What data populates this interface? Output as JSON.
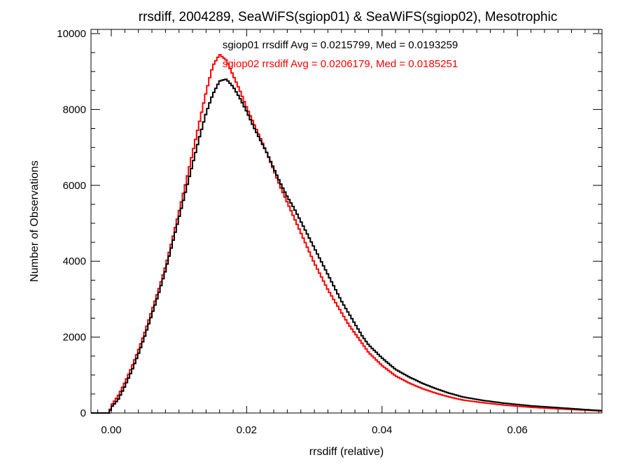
{
  "chart_data": {
    "type": "line",
    "title": "rrsdiff, 2004289, SeaWiFS(sgiop01) & SeaWiFS(sgiop02), Mesotrophic",
    "xlabel": "rrsdiff (relative)",
    "ylabel": "Number of Observations",
    "xlim": [
      -0.003,
      0.0725
    ],
    "ylim": [
      0,
      10000
    ],
    "x_ticks": [
      "0.00",
      "0.02",
      "0.04",
      "0.06"
    ],
    "x_tick_values": [
      0,
      0.02,
      0.04,
      0.06
    ],
    "y_ticks": [
      "0",
      "2000",
      "4000",
      "6000",
      "8000",
      "10000"
    ],
    "y_tick_values": [
      0,
      2000,
      4000,
      6000,
      8000,
      10000
    ],
    "grid": false,
    "series": [
      {
        "name": "sgiop01",
        "color": "#000000",
        "annotation": "sgiop01 rrsdiff Avg = 0.0215799, Med = 0.0193259",
        "points": [
          [
            -0.003,
            0
          ],
          [
            -0.0003,
            0
          ],
          [
            0.0,
            150
          ],
          [
            0.001,
            350
          ],
          [
            0.002,
            700
          ],
          [
            0.003,
            1100
          ],
          [
            0.004,
            1550
          ],
          [
            0.005,
            2050
          ],
          [
            0.006,
            2600
          ],
          [
            0.007,
            3150
          ],
          [
            0.008,
            3750
          ],
          [
            0.009,
            4450
          ],
          [
            0.01,
            5150
          ],
          [
            0.011,
            5850
          ],
          [
            0.012,
            6550
          ],
          [
            0.013,
            7250
          ],
          [
            0.014,
            7900
          ],
          [
            0.015,
            8400
          ],
          [
            0.016,
            8750
          ],
          [
            0.017,
            8800
          ],
          [
            0.018,
            8600
          ],
          [
            0.019,
            8300
          ],
          [
            0.02,
            7950
          ],
          [
            0.021,
            7550
          ],
          [
            0.022,
            7200
          ],
          [
            0.023,
            6850
          ],
          [
            0.024,
            6450
          ],
          [
            0.025,
            6050
          ],
          [
            0.026,
            5700
          ],
          [
            0.027,
            5400
          ],
          [
            0.028,
            5050
          ],
          [
            0.029,
            4700
          ],
          [
            0.03,
            4350
          ],
          [
            0.031,
            4000
          ],
          [
            0.032,
            3650
          ],
          [
            0.033,
            3300
          ],
          [
            0.034,
            2950
          ],
          [
            0.035,
            2650
          ],
          [
            0.036,
            2350
          ],
          [
            0.037,
            2050
          ],
          [
            0.038,
            1800
          ],
          [
            0.04,
            1450
          ],
          [
            0.042,
            1150
          ],
          [
            0.044,
            950
          ],
          [
            0.046,
            780
          ],
          [
            0.048,
            640
          ],
          [
            0.05,
            520
          ],
          [
            0.052,
            420
          ],
          [
            0.055,
            330
          ],
          [
            0.058,
            260
          ],
          [
            0.062,
            190
          ],
          [
            0.066,
            140
          ],
          [
            0.07,
            90
          ],
          [
            0.0725,
            60
          ]
        ]
      },
      {
        "name": "sgiop02",
        "color": "#ff0000",
        "annotation": "sgiop02 rrsdiff Avg = 0.0206179, Med = 0.0185251",
        "points": [
          [
            -0.003,
            0
          ],
          [
            -0.0003,
            0
          ],
          [
            0.0,
            200
          ],
          [
            0.001,
            450
          ],
          [
            0.002,
            800
          ],
          [
            0.003,
            1200
          ],
          [
            0.004,
            1650
          ],
          [
            0.005,
            2150
          ],
          [
            0.006,
            2700
          ],
          [
            0.007,
            3250
          ],
          [
            0.008,
            3850
          ],
          [
            0.009,
            4550
          ],
          [
            0.01,
            5300
          ],
          [
            0.011,
            6050
          ],
          [
            0.012,
            6850
          ],
          [
            0.013,
            7650
          ],
          [
            0.014,
            8450
          ],
          [
            0.015,
            9150
          ],
          [
            0.016,
            9450
          ],
          [
            0.017,
            9300
          ],
          [
            0.018,
            8900
          ],
          [
            0.019,
            8500
          ],
          [
            0.02,
            8050
          ],
          [
            0.021,
            7650
          ],
          [
            0.022,
            7250
          ],
          [
            0.023,
            6850
          ],
          [
            0.024,
            6400
          ],
          [
            0.025,
            5950
          ],
          [
            0.026,
            5550
          ],
          [
            0.027,
            5150
          ],
          [
            0.028,
            4750
          ],
          [
            0.029,
            4350
          ],
          [
            0.03,
            3950
          ],
          [
            0.031,
            3600
          ],
          [
            0.032,
            3250
          ],
          [
            0.033,
            2950
          ],
          [
            0.034,
            2650
          ],
          [
            0.035,
            2350
          ],
          [
            0.036,
            2100
          ],
          [
            0.037,
            1850
          ],
          [
            0.038,
            1600
          ],
          [
            0.04,
            1250
          ],
          [
            0.042,
            980
          ],
          [
            0.044,
            790
          ],
          [
            0.046,
            640
          ],
          [
            0.048,
            520
          ],
          [
            0.05,
            420
          ],
          [
            0.052,
            340
          ],
          [
            0.055,
            270
          ],
          [
            0.058,
            210
          ],
          [
            0.062,
            150
          ],
          [
            0.066,
            110
          ],
          [
            0.07,
            75
          ],
          [
            0.0725,
            50
          ]
        ]
      }
    ]
  }
}
